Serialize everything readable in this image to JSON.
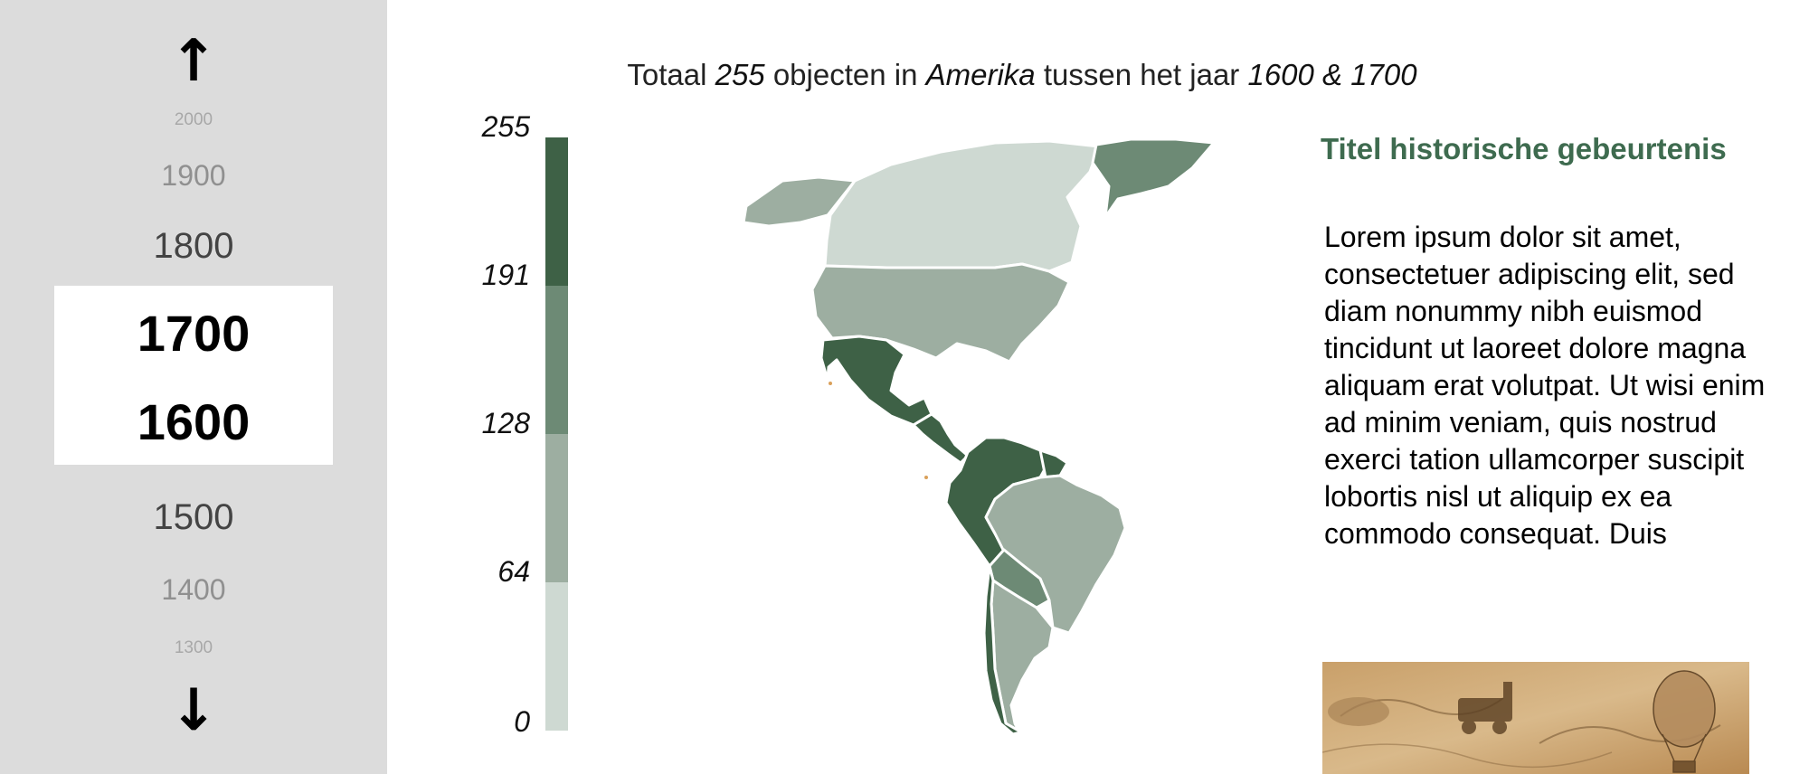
{
  "timeline": {
    "up_arrow": "↑",
    "down_arrow": "↓",
    "years_above": [
      "2000",
      "1900",
      "1800"
    ],
    "selected_end": "1700",
    "selected_start": "1600",
    "years_below": [
      "1500",
      "1400",
      "1300"
    ]
  },
  "header": {
    "prefix": "Totaal",
    "count": "255",
    "mid1": "objecten in",
    "region": "Amerika",
    "mid2": "tussen het jaar",
    "range": "1600 & 1700"
  },
  "legend": {
    "labels": [
      "255",
      "191",
      "128",
      "64",
      "0"
    ],
    "colors": [
      "#3e6146",
      "#6d8a75",
      "#9daea1",
      "#ced9d2"
    ]
  },
  "info": {
    "title": "Titel historische gebeurtenis",
    "body": "Lorem ipsum dolor sit amet, consectetuer adipiscing elit, sed diam nonummy nibh euismod tincidunt ut laoreet dolore magna aliquam erat volutpat. Ut wisi enim ad minim veniam, quis nostrud exerci tation ullamcorper suscipit lobortis nisl ut aliquip ex ea commodo consequat. Duis"
  }
}
